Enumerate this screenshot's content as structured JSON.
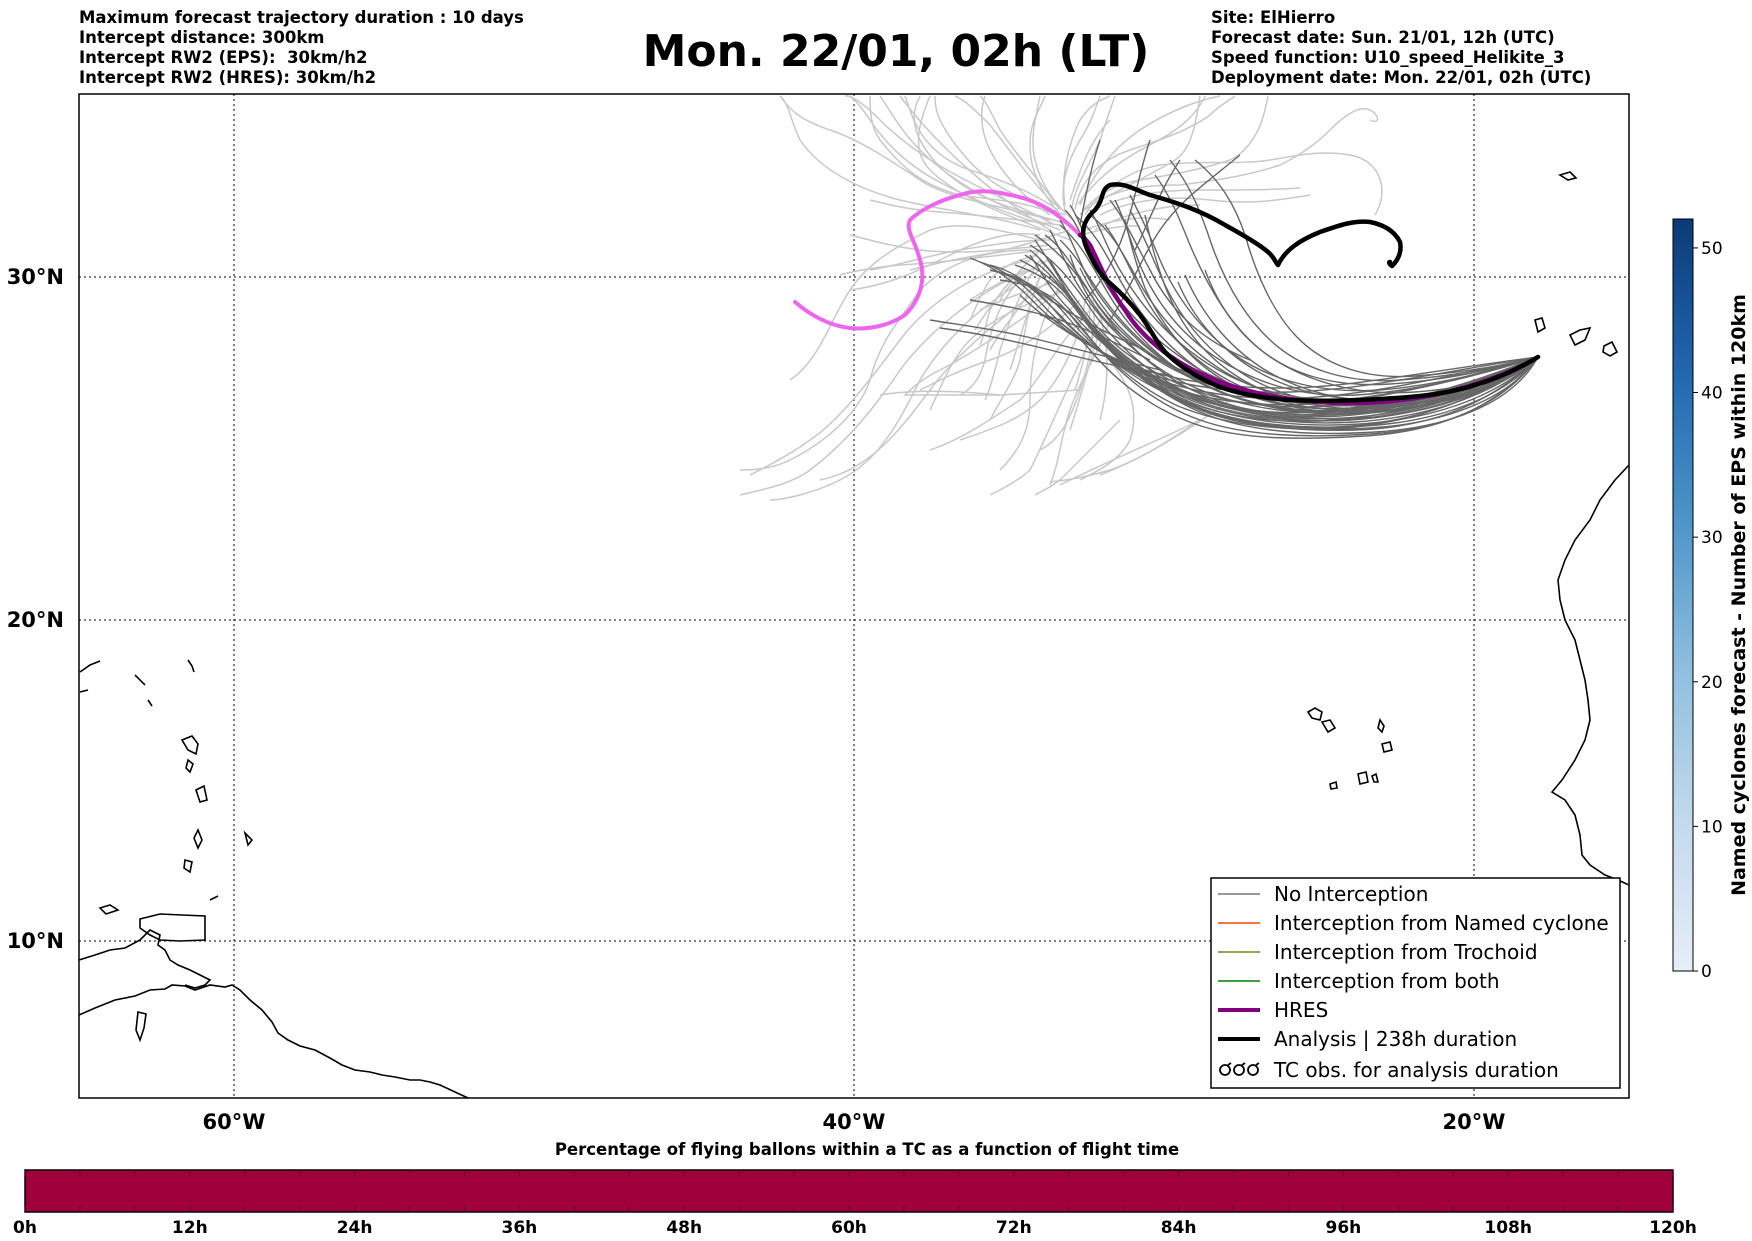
{
  "header": {
    "title": "Mon. 22/01, 02h (LT)",
    "left_lines": [
      "Maximum forecast trajectory duration : 10 days",
      "Intercept distance: 300km",
      "Intercept RW2 (EPS):  30km/h2",
      "Intercept RW2 (HRES): 30km/h2"
    ],
    "right_lines": [
      "Site: ElHierro",
      "Forecast date: Sun. 21/01, 12h (UTC)",
      "Speed function: U10_speed_Helikite_3",
      "Deployment date: Mon. 22/01, 02h (UTC)"
    ]
  },
  "map": {
    "lat_labels": [
      "30°N",
      "20°N",
      "10°N"
    ],
    "lon_labels": [
      "60°W",
      "40°W",
      "20°W"
    ],
    "extent": {
      "lon_min": -65,
      "lon_max": -15,
      "lat_min": 5,
      "lat_max": 35.3
    },
    "colors": {
      "eps_no_interception": "#666666",
      "eps_light": "#c8c8c8",
      "hres": "#800080",
      "hres_light": "#ee66ee",
      "analysis": "#000000"
    }
  },
  "legend": {
    "items": [
      {
        "label": "No Interception",
        "color": "#777777",
        "kind": "thin"
      },
      {
        "label": "Interception from Named cyclone",
        "color": "#ff4500",
        "kind": "thin"
      },
      {
        "label": "Interception from Trochoid",
        "color": "#6b8e23",
        "kind": "thin"
      },
      {
        "label": "Interception from both",
        "color": "#008000",
        "kind": "thin"
      },
      {
        "label": "HRES",
        "color": "#800080",
        "kind": "thick"
      },
      {
        "label": "Analysis | 238h duration",
        "color": "#000000",
        "kind": "thick"
      },
      {
        "label": "TC obs. for analysis duration",
        "color": "#000000",
        "kind": "symbol"
      }
    ]
  },
  "colorbar_right": {
    "label": "Named cyclones forecast - Number of EPS within 120km",
    "ticks": [
      "0",
      "10",
      "20",
      "30",
      "40",
      "50"
    ],
    "range": [
      0,
      52
    ],
    "color_low": "#e6eef8",
    "color_high": "#0b3a78"
  },
  "timeline": {
    "title": "Percentage of flying ballons within a TC as a function of flight time",
    "ticks": [
      "0h",
      "12h",
      "24h",
      "36h",
      "48h",
      "60h",
      "72h",
      "84h",
      "96h",
      "108h",
      "120h"
    ],
    "fill_color": "#a0003c"
  }
}
